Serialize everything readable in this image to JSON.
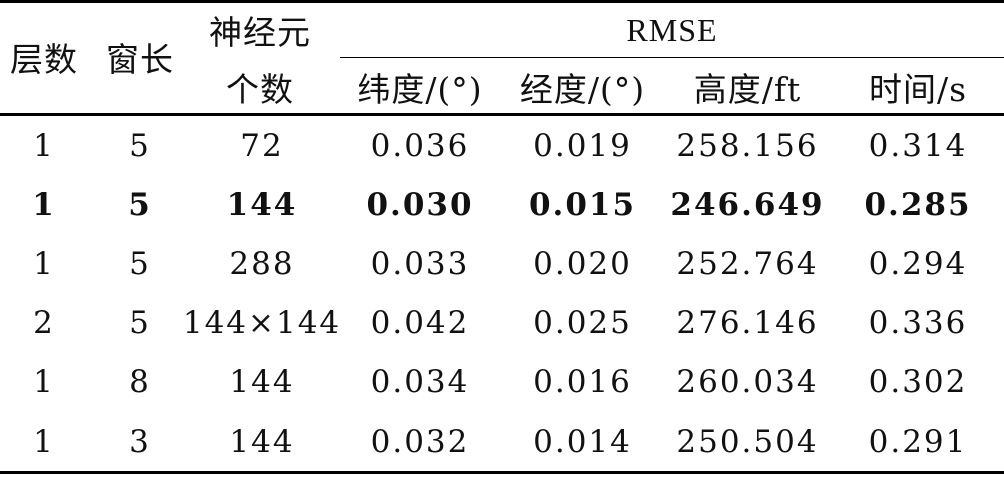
{
  "header": {
    "layers": "层数",
    "window": "窗长",
    "neurons_line1": "神经元",
    "neurons_line2": "个数",
    "rmse": "RMSE",
    "lat": "纬度/(°)",
    "lon": "经度/(°)",
    "alt": "高度/ft",
    "time": "时间/s"
  },
  "rows": [
    {
      "layers": "1",
      "window": "5",
      "neurons": "72",
      "lat": "0.036",
      "lon": "0.019",
      "alt": "258.156",
      "time": "0.314",
      "bold": false
    },
    {
      "layers": "1",
      "window": "5",
      "neurons": "144",
      "lat": "0.030",
      "lon": "0.015",
      "alt": "246.649",
      "time": "0.285",
      "bold": true
    },
    {
      "layers": "1",
      "window": "5",
      "neurons": "288",
      "lat": "0.033",
      "lon": "0.020",
      "alt": "252.764",
      "time": "0.294",
      "bold": false
    },
    {
      "layers": "2",
      "window": "5",
      "neurons": "144×144",
      "lat": "0.042",
      "lon": "0.025",
      "alt": "276.146",
      "time": "0.336",
      "bold": false
    },
    {
      "layers": "1",
      "window": "8",
      "neurons": "144",
      "lat": "0.034",
      "lon": "0.016",
      "alt": "260.034",
      "time": "0.302",
      "bold": false
    },
    {
      "layers": "1",
      "window": "3",
      "neurons": "144",
      "lat": "0.032",
      "lon": "0.014",
      "alt": "250.504",
      "time": "0.291",
      "bold": false
    }
  ]
}
